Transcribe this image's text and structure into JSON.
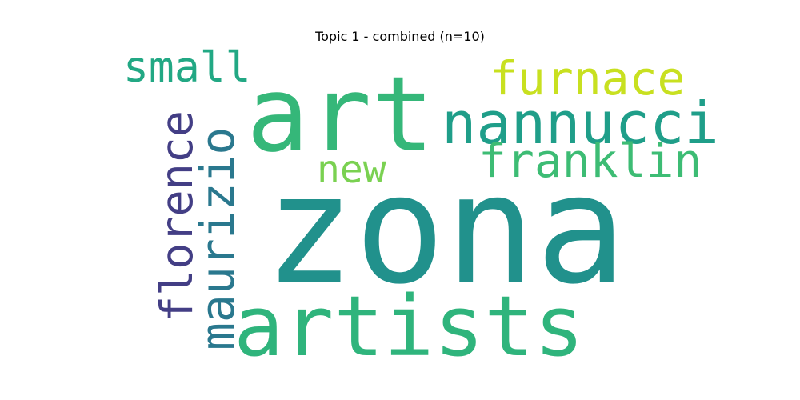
{
  "chart_data": {
    "type": "wordcloud",
    "title": "Topic 1 - combined (n=10)",
    "words": [
      {
        "text": "zona",
        "rank": 1,
        "color": "#21918c",
        "orientation": "horizontal"
      },
      {
        "text": "art",
        "rank": 2,
        "color": "#35b779",
        "orientation": "horizontal"
      },
      {
        "text": "artists",
        "rank": 3,
        "color": "#2fb47c",
        "orientation": "horizontal"
      },
      {
        "text": "nannucci",
        "rank": 4,
        "color": "#1f9e89",
        "orientation": "horizontal"
      },
      {
        "text": "maurizio",
        "rank": 5,
        "color": "#2a788e",
        "orientation": "vertical"
      },
      {
        "text": "florence",
        "rank": 6,
        "color": "#433e85",
        "orientation": "vertical"
      },
      {
        "text": "franklin",
        "rank": 7,
        "color": "#3dbc74",
        "orientation": "horizontal"
      },
      {
        "text": "furnace",
        "rank": 8,
        "color": "#c8e020",
        "orientation": "horizontal"
      },
      {
        "text": "small",
        "rank": 9,
        "color": "#22a884",
        "orientation": "horizontal"
      },
      {
        "text": "new",
        "rank": 10,
        "color": "#7ad151",
        "orientation": "horizontal"
      }
    ]
  }
}
